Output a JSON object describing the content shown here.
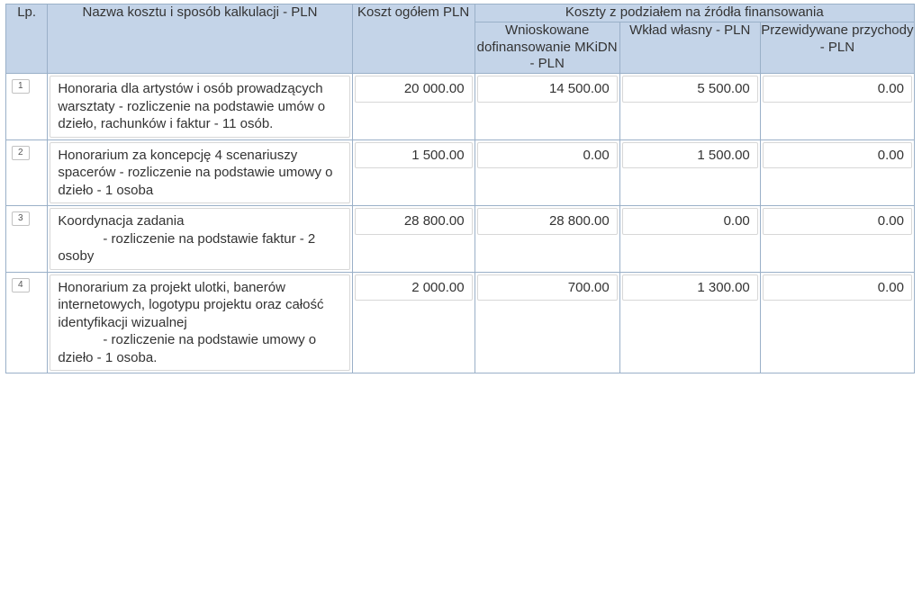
{
  "header": {
    "lp": "Lp.",
    "name": "Nazwa kosztu i sposób kalkulacji - PLN",
    "total": "Koszt ogółem PLN",
    "sources_group": "Koszty z podziałem na źródła finansowania",
    "wn": "Wnioskowane dofinansowanie MKiDN\n- PLN",
    "ww": "Wkład własny - PLN",
    "pp": "Przewidywane przychody - PLN"
  },
  "rows": [
    {
      "lp": "1",
      "name": "Honoraria dla artystów i osób prowadzących warsztaty - rozliczenie na podstawie umów o dzieło, rachunków i faktur - 11 osób.",
      "total": "20 000.00",
      "wn": "14 500.00",
      "ww": "5 500.00",
      "pp": "0.00"
    },
    {
      "lp": "2",
      "name": "Honorarium za koncepcję 4 scenariuszy spacerów - rozliczenie na podstawie umowy o dzieło - 1 osoba",
      "total": "1 500.00",
      "wn": "0.00",
      "ww": "1 500.00",
      "pp": "0.00"
    },
    {
      "lp": "3",
      "name": "Koordynacja zadania\n            - rozliczenie na podstawie faktur - 2 osoby",
      "total": "28 800.00",
      "wn": "28 800.00",
      "ww": "0.00",
      "pp": "0.00"
    },
    {
      "lp": "4",
      "name": "Honorarium za projekt ulotki, banerów internetowych, logotypu projektu oraz całość identyfikacji wizualnej\n            - rozliczenie na podstawie umowy o dzieło - 1 osoba.",
      "total": "2 000.00",
      "wn": "700.00",
      "ww": "1 300.00",
      "pp": "0.00"
    }
  ],
  "style": {
    "header_bg": "#c4d4e8",
    "border_color": "#9ab0c8",
    "field_border": "#d7d7d7",
    "text_color": "#333333",
    "font_family": "Verdana",
    "font_size_pt": 11
  }
}
